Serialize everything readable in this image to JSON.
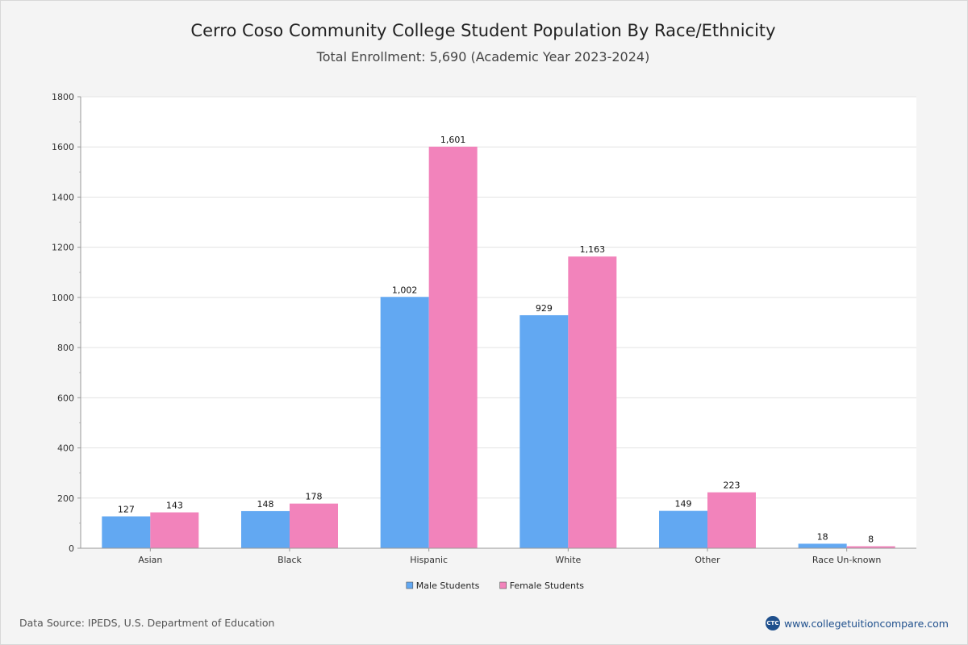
{
  "header": {
    "title": "Cerro Coso Community College Student Population By Race/Ethnicity",
    "subtitle": "Total Enrollment: 5,690 (Academic Year 2023-2024)"
  },
  "footer": {
    "source": "Data Source: IPEDS, U.S. Department of Education",
    "brand_logo_text": "CTC",
    "brand_url": "www.collegetuitioncompare.com"
  },
  "chart_data": {
    "type": "bar",
    "title": "Cerro Coso Community College Student Population By Race/Ethnicity",
    "subtitle": "Total Enrollment: 5,690 (Academic Year 2023-2024)",
    "categories": [
      "Asian",
      "Black",
      "Hispanic",
      "White",
      "Other",
      "Race Un-known"
    ],
    "series": [
      {
        "name": "Male Students",
        "color": "#62a8f2",
        "values": [
          127,
          148,
          1002,
          929,
          149,
          18
        ]
      },
      {
        "name": "Female Students",
        "color": "#f283bb",
        "values": [
          143,
          178,
          1601,
          1163,
          223,
          8
        ]
      }
    ],
    "ylim": [
      0,
      1800
    ],
    "yticks": [
      0,
      200,
      400,
      600,
      800,
      1000,
      1200,
      1400,
      1600,
      1800
    ],
    "xlabel": "",
    "ylabel": "",
    "grid": true,
    "legend": "bottom-center"
  }
}
